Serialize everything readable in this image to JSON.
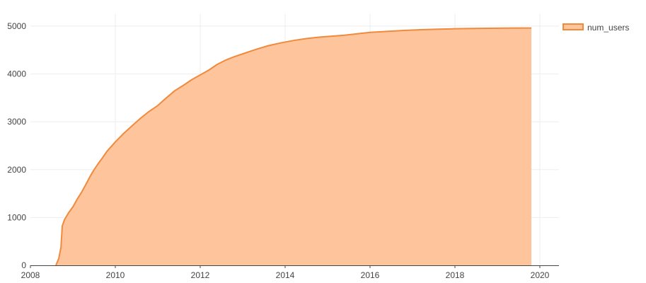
{
  "chart_data": {
    "type": "area",
    "title": "",
    "xlabel": "",
    "ylabel": "",
    "xlim": [
      2008,
      2020.45
    ],
    "ylim": [
      0,
      5250
    ],
    "x_ticks": [
      2008,
      2010,
      2012,
      2014,
      2016,
      2018,
      2020
    ],
    "y_ticks": [
      0,
      1000,
      2000,
      3000,
      4000,
      5000
    ],
    "grid": true,
    "legend_position": "top-right",
    "series": [
      {
        "name": "num_users",
        "color": "#f08a3c",
        "fill": "#fec49c",
        "x": [
          2008.6,
          2008.67,
          2008.72,
          2008.75,
          2008.8,
          2008.9,
          2009.0,
          2009.1,
          2009.2,
          2009.3,
          2009.4,
          2009.5,
          2009.6,
          2009.7,
          2009.8,
          2009.9,
          2010.0,
          2010.2,
          2010.4,
          2010.6,
          2010.8,
          2011.0,
          2011.2,
          2011.4,
          2011.6,
          2011.8,
          2012.0,
          2012.2,
          2012.4,
          2012.6,
          2012.8,
          2013.0,
          2013.3,
          2013.6,
          2013.9,
          2014.2,
          2014.5,
          2014.8,
          2015.1,
          2015.4,
          2015.7,
          2016.0,
          2016.4,
          2016.8,
          2017.2,
          2017.6,
          2018.0,
          2018.4,
          2018.8,
          2019.2,
          2019.6,
          2019.8
        ],
        "values": [
          0,
          150,
          380,
          820,
          950,
          1100,
          1220,
          1380,
          1520,
          1680,
          1850,
          2000,
          2130,
          2250,
          2380,
          2480,
          2580,
          2760,
          2920,
          3080,
          3220,
          3340,
          3500,
          3650,
          3760,
          3880,
          3980,
          4080,
          4200,
          4290,
          4360,
          4420,
          4510,
          4590,
          4650,
          4700,
          4740,
          4770,
          4790,
          4810,
          4840,
          4870,
          4890,
          4910,
          4925,
          4935,
          4945,
          4950,
          4955,
          4958,
          4960,
          4960
        ]
      }
    ]
  }
}
